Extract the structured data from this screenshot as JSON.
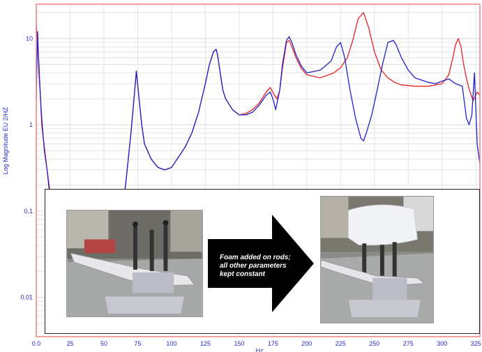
{
  "chart_data": {
    "type": "line",
    "title": "",
    "xlabel": "Hz",
    "ylabel": "Log Magnitude EU 2/HZ",
    "xlim": [
      0,
      328
    ],
    "ylim": [
      0.0035,
      25
    ],
    "y_scale": "log",
    "grid": true,
    "x_ticks": [
      "0.0",
      "25",
      "50",
      "75",
      "100",
      "125",
      "150",
      "175",
      "200",
      "225",
      "250",
      "275",
      "300",
      "325"
    ],
    "y_ticks": [
      "10",
      "1",
      "0.1",
      "0.01"
    ],
    "series": [
      {
        "color": "#e82020",
        "x": [
          0,
          2,
          4,
          8,
          12,
          20,
          30,
          40,
          50,
          55,
          60,
          62,
          64,
          66,
          68,
          70,
          72,
          74,
          76,
          78,
          80,
          85,
          90,
          95,
          100,
          110,
          115,
          120,
          125,
          128,
          131,
          133,
          134,
          136,
          138,
          140,
          145,
          150,
          155,
          160,
          165,
          170,
          173,
          176,
          178,
          180,
          182,
          185,
          187,
          189,
          192,
          196,
          200,
          210,
          220,
          225,
          230,
          234,
          238,
          242,
          246,
          250,
          255,
          260,
          265,
          270,
          280,
          290,
          300,
          305,
          308,
          310,
          312,
          314,
          316,
          318,
          320,
          323,
          326,
          328
        ],
        "y": [
          15,
          5,
          1,
          0.3,
          0.1,
          0.06,
          0.04,
          0.04,
          0.05,
          0.06,
          0.08,
          0.09,
          0.12,
          0.2,
          0.4,
          0.8,
          1.8,
          4.2,
          2.0,
          1.0,
          0.6,
          0.4,
          0.32,
          0.3,
          0.32,
          0.55,
          0.8,
          1.4,
          3.0,
          5.0,
          7.0,
          7.5,
          6.5,
          4.0,
          2.5,
          2.0,
          1.5,
          1.3,
          1.35,
          1.5,
          1.8,
          2.4,
          2.7,
          2.2,
          2.0,
          2.5,
          4.5,
          9.0,
          9.5,
          8.0,
          6.0,
          4.5,
          3.8,
          3.5,
          4.0,
          4.6,
          6.0,
          9.5,
          17.0,
          20.0,
          13.0,
          7.0,
          4.3,
          3.5,
          3.1,
          2.9,
          2.8,
          2.8,
          3.0,
          3.8,
          6.0,
          8.5,
          10.0,
          8.0,
          5.0,
          3.5,
          2.6,
          1.9,
          2.4,
          2.2
        ]
      },
      {
        "color": "#2020cc",
        "x": [
          0,
          1,
          2,
          4,
          6,
          8,
          10,
          15,
          20,
          30,
          40,
          50,
          55,
          60,
          62,
          64,
          66,
          68,
          70,
          72,
          74,
          76,
          78,
          80,
          85,
          90,
          95,
          100,
          110,
          115,
          120,
          125,
          128,
          131,
          133,
          134,
          136,
          138,
          140,
          145,
          150,
          155,
          160,
          165,
          170,
          173,
          175,
          177,
          180,
          182,
          185,
          187,
          189,
          192,
          196,
          200,
          210,
          218,
          222,
          225,
          228,
          232,
          236,
          240,
          242,
          244,
          248,
          252,
          256,
          260,
          264,
          266,
          270,
          275,
          280,
          290,
          295,
          300,
          305,
          310,
          315,
          318,
          320,
          322,
          324,
          326,
          328
        ],
        "y": [
          2,
          12,
          4,
          1.2,
          0.5,
          0.3,
          0.15,
          0.08,
          0.05,
          0.04,
          0.04,
          0.05,
          0.06,
          0.08,
          0.09,
          0.12,
          0.2,
          0.4,
          0.8,
          1.8,
          4.2,
          2.0,
          1.0,
          0.6,
          0.4,
          0.32,
          0.3,
          0.32,
          0.55,
          0.8,
          1.4,
          3.0,
          5.0,
          7.0,
          7.5,
          6.5,
          4.0,
          2.5,
          2.0,
          1.5,
          1.3,
          1.3,
          1.4,
          1.7,
          2.2,
          2.4,
          2.0,
          1.5,
          2.5,
          5.0,
          9.5,
          10.5,
          9.0,
          6.5,
          4.8,
          4.0,
          4.3,
          5.5,
          8.0,
          9.0,
          6.0,
          2.5,
          1.2,
          0.7,
          0.65,
          0.8,
          1.3,
          2.5,
          5.0,
          9.0,
          9.5,
          8.5,
          6.0,
          4.3,
          3.5,
          3.1,
          3.0,
          3.2,
          3.4,
          3.0,
          2.8,
          1.2,
          1.0,
          1.3,
          4.0,
          0.6,
          0.35
        ]
      }
    ]
  },
  "annotation": {
    "lines": [
      "Foam added on rods;",
      "all other parameters",
      "kept constant"
    ]
  },
  "colors": {
    "axis": "#2a2ad0",
    "border": "#f08080",
    "grid": "#e4e4e4",
    "arrow": "#000000"
  },
  "icons": {
    "photo_before": "plate-with-rods-photo",
    "photo_after": "plate-with-foam-photo",
    "arrow": "right-arrow-icon"
  }
}
